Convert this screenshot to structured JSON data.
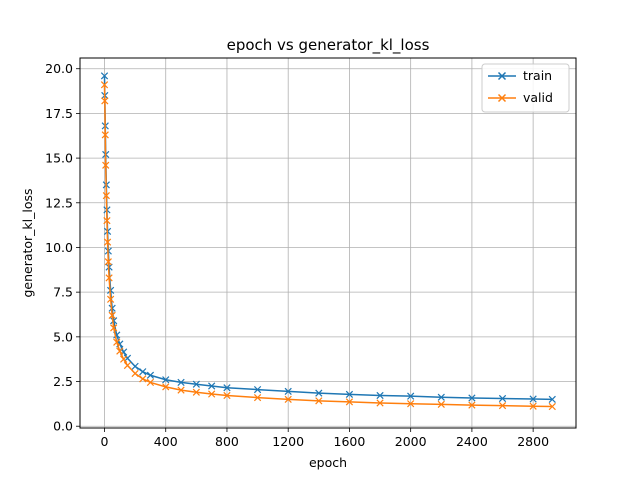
{
  "chart_data": {
    "type": "line",
    "title": "epoch vs generator_kl_loss",
    "xlabel": "epoch",
    "ylabel": "generator_kl_loss",
    "xlim": [
      -160,
      3080
    ],
    "ylim": [
      -0.1,
      20.6
    ],
    "xticks": [
      0,
      400,
      800,
      1200,
      1600,
      2000,
      2400,
      2800
    ],
    "yticks": [
      0.0,
      2.5,
      5.0,
      7.5,
      10.0,
      12.5,
      15.0,
      17.5,
      20.0
    ],
    "ytick_labels": [
      "0.0",
      "2.5",
      "5.0",
      "7.5",
      "10.0",
      "12.5",
      "15.0",
      "17.5",
      "20.0"
    ],
    "grid": true,
    "legend_position": "top-right",
    "marker": "x",
    "series": [
      {
        "name": "train",
        "color": "#1f77b4",
        "x": [
          0,
          2,
          5,
          8,
          12,
          16,
          20,
          25,
          30,
          40,
          50,
          60,
          80,
          100,
          125,
          150,
          200,
          250,
          300,
          400,
          500,
          600,
          700,
          800,
          1000,
          1200,
          1400,
          1600,
          1800,
          2000,
          2200,
          2400,
          2600,
          2800,
          2925
        ],
        "y": [
          19.6,
          18.5,
          16.8,
          15.2,
          13.5,
          12.1,
          10.9,
          9.8,
          8.9,
          7.6,
          6.6,
          5.9,
          5.1,
          4.6,
          4.15,
          3.8,
          3.35,
          3.05,
          2.85,
          2.6,
          2.45,
          2.35,
          2.25,
          2.15,
          2.05,
          1.95,
          1.85,
          1.78,
          1.72,
          1.68,
          1.62,
          1.58,
          1.55,
          1.52,
          1.5
        ]
      },
      {
        "name": "valid",
        "color": "#ff7f0e",
        "x": [
          0,
          2,
          5,
          8,
          12,
          16,
          20,
          25,
          30,
          40,
          50,
          60,
          80,
          100,
          125,
          150,
          200,
          250,
          300,
          400,
          500,
          600,
          700,
          800,
          1000,
          1200,
          1400,
          1600,
          1800,
          2000,
          2200,
          2400,
          2600,
          2800,
          2925
        ],
        "y": [
          19.1,
          18.2,
          16.3,
          14.6,
          12.9,
          11.5,
          10.3,
          9.2,
          8.3,
          7.1,
          6.2,
          5.5,
          4.7,
          4.2,
          3.75,
          3.4,
          2.95,
          2.65,
          2.45,
          2.2,
          2.02,
          1.9,
          1.8,
          1.72,
          1.6,
          1.5,
          1.42,
          1.36,
          1.3,
          1.26,
          1.22,
          1.18,
          1.15,
          1.12,
          1.1
        ]
      }
    ]
  }
}
